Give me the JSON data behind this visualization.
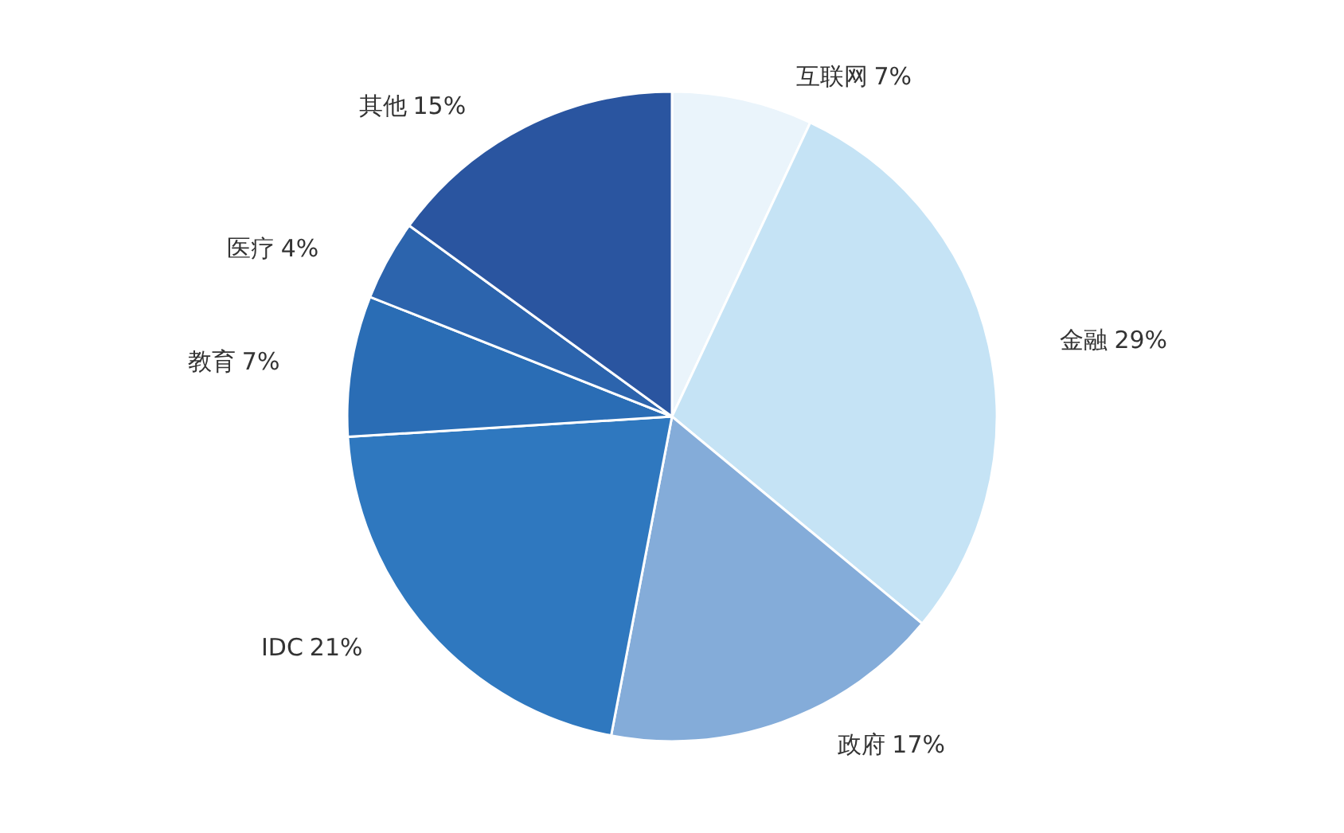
{
  "chart_data": {
    "type": "pie",
    "categories": [
      "互联网",
      "金融",
      "政府",
      "IDC",
      "教育",
      "医疗",
      "其他"
    ],
    "values": [
      7,
      29,
      17,
      21,
      7,
      4,
      15
    ],
    "colors": [
      "#eaf4fb",
      "#c5e3f5",
      "#84acd9",
      "#2f78bf",
      "#2a6db5",
      "#2c64ad",
      "#2a55a0"
    ],
    "value_labels": [
      "7%",
      "29%",
      "17%",
      "21%",
      "7%",
      "4%",
      "15%"
    ],
    "legend": false
  }
}
